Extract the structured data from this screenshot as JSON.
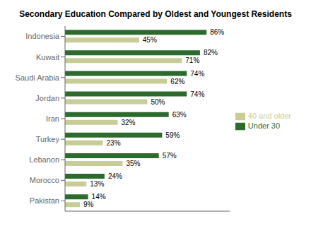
{
  "chart_data": {
    "type": "bar",
    "orientation": "horizontal",
    "title": "Secondary Education Compared by Oldest and Youngest Residents",
    "categories": [
      "Indonesia",
      "Kuwait",
      "Saudi Arabia",
      "Jordan",
      "Iran",
      "Turkey",
      "Lebanon",
      "Morocco",
      "Pakistan"
    ],
    "series": [
      {
        "name": "Under 30",
        "color": "#2d6a2d",
        "values": [
          86,
          82,
          74,
          74,
          63,
          59,
          57,
          24,
          14
        ],
        "value_labels": [
          "86%",
          "82%",
          "74%",
          "74%",
          "63%",
          "59%",
          "57%",
          "24%",
          "14%"
        ]
      },
      {
        "name": "40 and older",
        "color": "#c8cc96",
        "values": [
          45,
          71,
          62,
          50,
          32,
          23,
          35,
          13,
          9
        ],
        "value_labels": [
          "45%",
          "71%",
          "62%",
          "50%",
          "32%",
          "23%",
          "35%",
          "13%",
          "9%"
        ]
      }
    ],
    "xlim": [
      0,
      100
    ],
    "xticks": [],
    "tick_labels": "y",
    "grid": false,
    "legend": "right",
    "data_labels": true
  }
}
